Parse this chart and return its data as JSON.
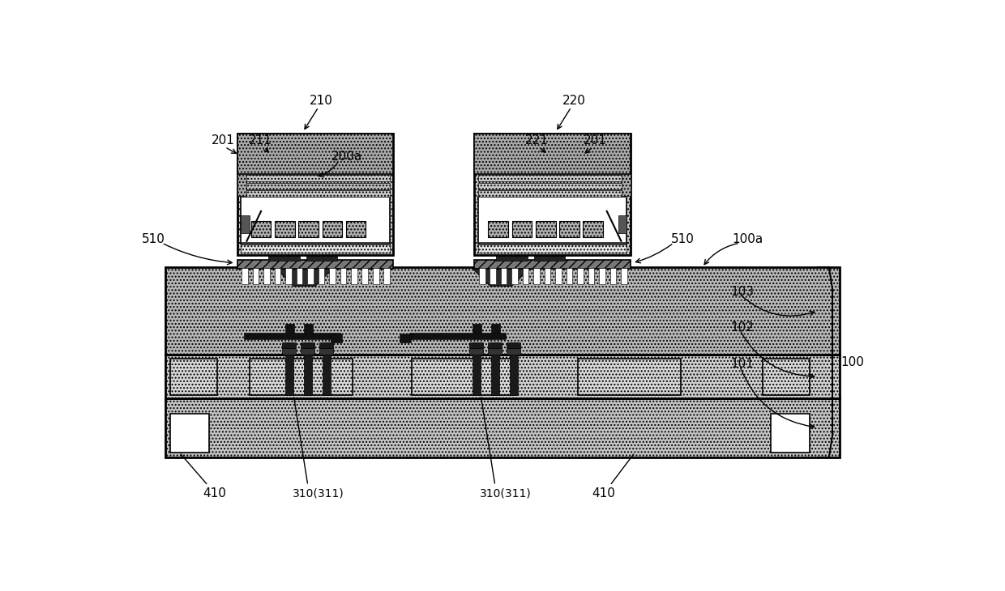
{
  "bg_color": "#ffffff",
  "fig_width": 12.4,
  "fig_height": 7.3,
  "dpi": 100,
  "colors": {
    "black": "#000000",
    "chip_top": "#aaaaaa",
    "chip_body": "#c8c8c8",
    "chip_inner_white": "#ffffff",
    "chip_pad_gray": "#c0c0c0",
    "substrate_103": "#b8b8b8",
    "substrate_102": "#d0d0d0",
    "substrate_101": "#c4c4c4",
    "sub_cavity": "#d8d8d8",
    "via_dark": "#1a1a1a",
    "trace_dark": "#111111",
    "solder_gray": "#888888",
    "column_white": "#f0f0f0",
    "metal_strip": "#444444",
    "bond_pad_fc": "#b0b0b0",
    "chip_stripe_dark": "#888888",
    "chip_stripe_mid": "#aaaaaa"
  }
}
